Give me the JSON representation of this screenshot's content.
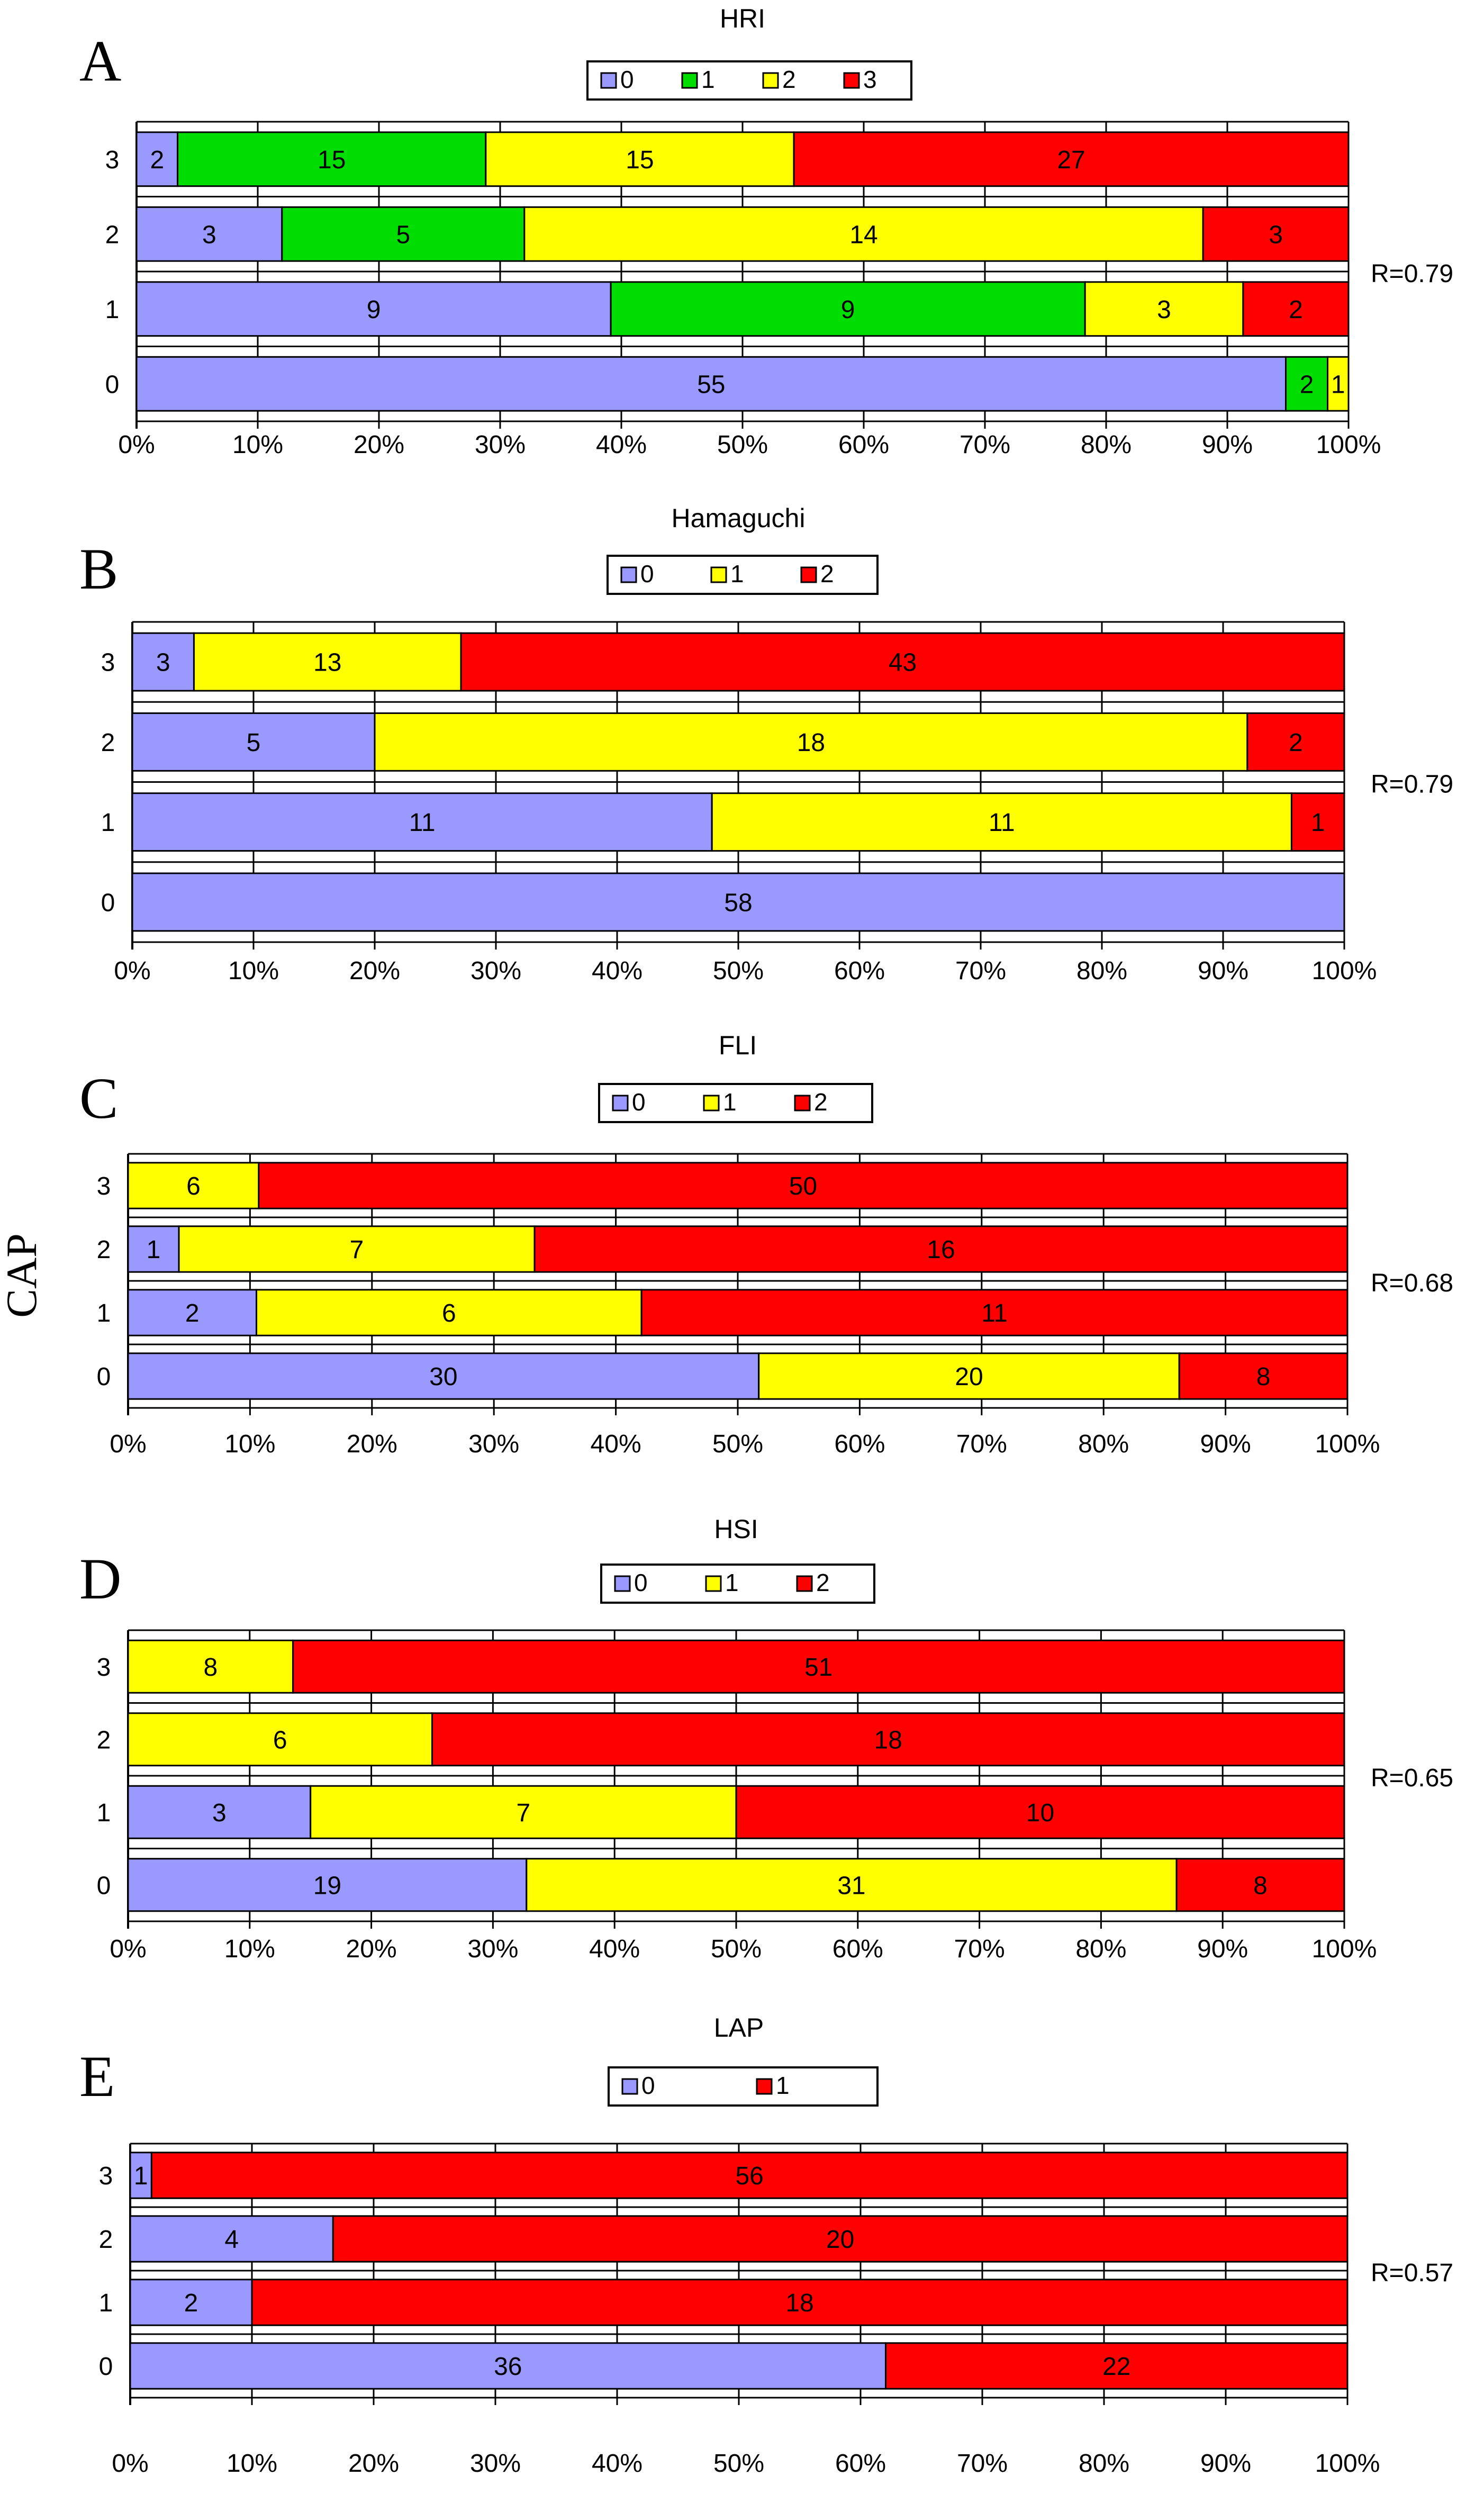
{
  "figure": {
    "y_axis_label": "CAP",
    "colors": {
      "level_0": "#9999ff",
      "level_1_green": "#00dd00",
      "level_yellow": "#ffff00",
      "level_red": "#ff0000",
      "grid": "#000000",
      "bar_border": "#000000"
    }
  },
  "chart_data": [
    {
      "panel": "A",
      "type": "bar",
      "orientation": "horizontal",
      "stacked": "percent",
      "title": "HRI",
      "categories": [
        "0",
        "1",
        "2",
        "3"
      ],
      "series": [
        {
          "name": "0",
          "color": "#9999ff",
          "values": [
            55,
            9,
            3,
            2
          ]
        },
        {
          "name": "1",
          "color": "#00dd00",
          "values": [
            2,
            9,
            5,
            15
          ]
        },
        {
          "name": "2",
          "color": "#ffff00",
          "values": [
            1,
            3,
            14,
            15
          ]
        },
        {
          "name": "3",
          "color": "#ff0000",
          "values": [
            0,
            2,
            3,
            27
          ]
        }
      ],
      "xticks": [
        "0%",
        "10%",
        "20%",
        "30%",
        "40%",
        "50%",
        "60%",
        "70%",
        "80%",
        "90%",
        "100%"
      ],
      "xlim": [
        0,
        100
      ],
      "legend_position": "top-center",
      "annotation": "R=0.79"
    },
    {
      "panel": "B",
      "type": "bar",
      "orientation": "horizontal",
      "stacked": "percent",
      "title": "Hamaguchi",
      "categories": [
        "0",
        "1",
        "2",
        "3"
      ],
      "series": [
        {
          "name": "0",
          "color": "#9999ff",
          "values": [
            58,
            11,
            5,
            3
          ]
        },
        {
          "name": "1",
          "color": "#ffff00",
          "values": [
            0,
            11,
            18,
            13
          ]
        },
        {
          "name": "2",
          "color": "#ff0000",
          "values": [
            0,
            1,
            2,
            43
          ]
        }
      ],
      "xticks": [
        "0%",
        "10%",
        "20%",
        "30%",
        "40%",
        "50%",
        "60%",
        "70%",
        "80%",
        "90%",
        "100%"
      ],
      "xlim": [
        0,
        100
      ],
      "legend_position": "top-center",
      "annotation": "R=0.79"
    },
    {
      "panel": "C",
      "type": "bar",
      "orientation": "horizontal",
      "stacked": "percent",
      "title": "FLI",
      "categories": [
        "0",
        "1",
        "2",
        "3"
      ],
      "series": [
        {
          "name": "0",
          "color": "#9999ff",
          "values": [
            30,
            2,
            1,
            0
          ]
        },
        {
          "name": "1",
          "color": "#ffff00",
          "values": [
            20,
            6,
            7,
            6
          ]
        },
        {
          "name": "2",
          "color": "#ff0000",
          "values": [
            8,
            11,
            16,
            50
          ]
        }
      ],
      "xticks": [
        "0%",
        "10%",
        "20%",
        "30%",
        "40%",
        "50%",
        "60%",
        "70%",
        "80%",
        "90%",
        "100%"
      ],
      "xlim": [
        0,
        100
      ],
      "legend_position": "top-center",
      "annotation": "R=0.68"
    },
    {
      "panel": "D",
      "type": "bar",
      "orientation": "horizontal",
      "stacked": "percent",
      "title": "HSI",
      "categories": [
        "0",
        "1",
        "2",
        "3"
      ],
      "series": [
        {
          "name": "0",
          "color": "#9999ff",
          "values": [
            19,
            3,
            0,
            0
          ]
        },
        {
          "name": "1",
          "color": "#ffff00",
          "values": [
            31,
            7,
            6,
            8
          ]
        },
        {
          "name": "2",
          "color": "#ff0000",
          "values": [
            8,
            10,
            18,
            51
          ]
        }
      ],
      "xticks": [
        "0%",
        "10%",
        "20%",
        "30%",
        "40%",
        "50%",
        "60%",
        "70%",
        "80%",
        "90%",
        "100%"
      ],
      "xlim": [
        0,
        100
      ],
      "legend_position": "top-center",
      "annotation": "R=0.65"
    },
    {
      "panel": "E",
      "type": "bar",
      "orientation": "horizontal",
      "stacked": "percent",
      "title": "LAP",
      "categories": [
        "0",
        "1",
        "2",
        "3"
      ],
      "series": [
        {
          "name": "0",
          "color": "#9999ff",
          "values": [
            36,
            2,
            4,
            1
          ]
        },
        {
          "name": "1",
          "color": "#ff0000",
          "values": [
            22,
            18,
            20,
            56
          ]
        }
      ],
      "xticks": [
        "0%",
        "10%",
        "20%",
        "30%",
        "40%",
        "50%",
        "60%",
        "70%",
        "80%",
        "90%",
        "100%"
      ],
      "xlim": [
        0,
        100
      ],
      "legend_position": "top-center",
      "annotation": "R=0.57"
    }
  ]
}
